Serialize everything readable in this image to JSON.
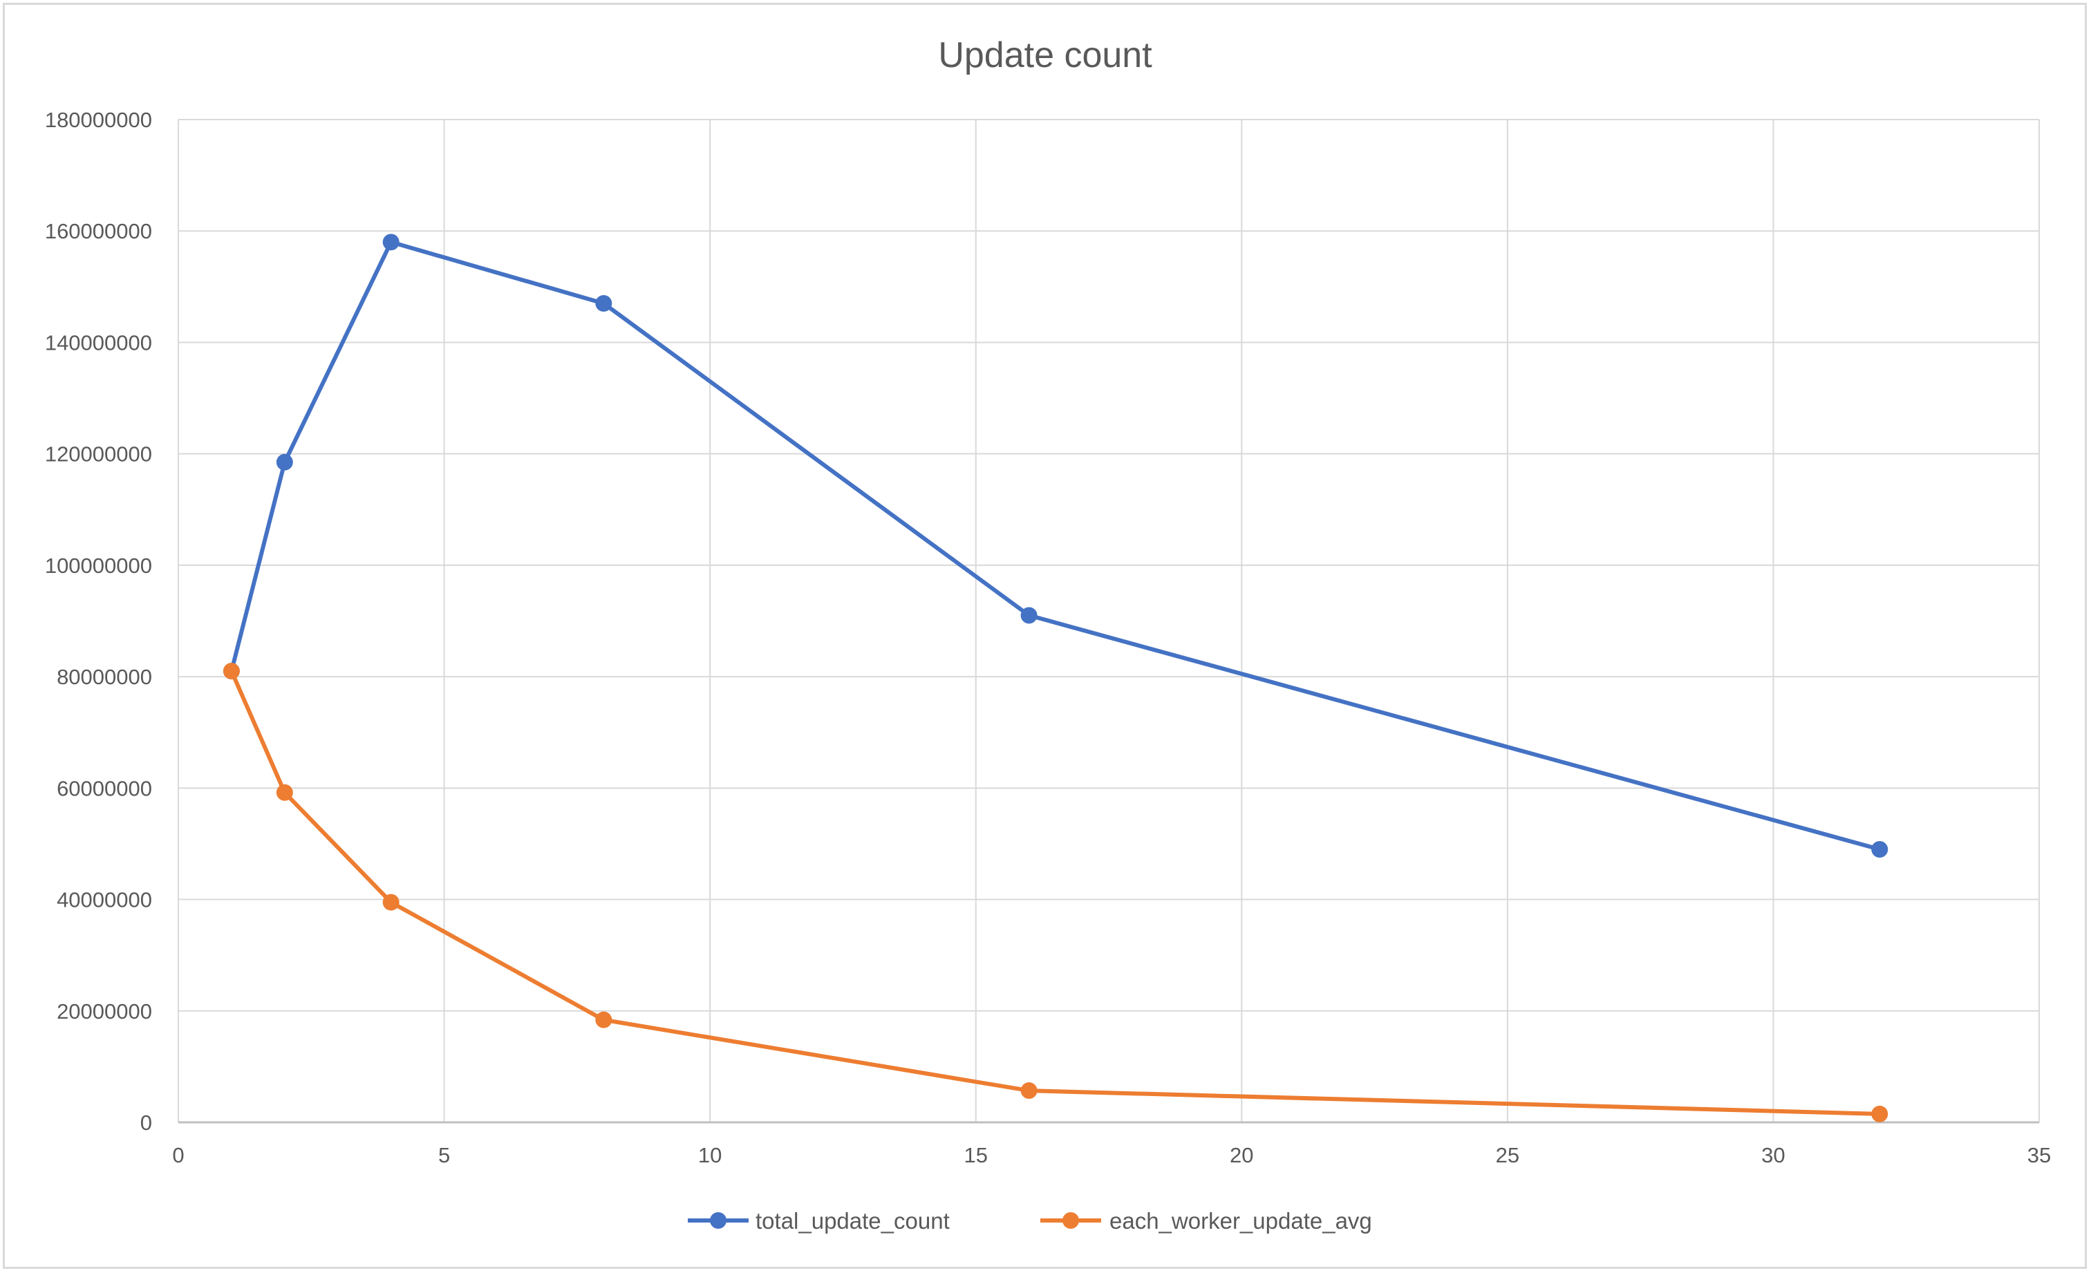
{
  "chart_data": {
    "type": "line",
    "title": "Update count",
    "xlabel": "",
    "ylabel": "",
    "xlim": [
      0,
      35
    ],
    "ylim": [
      0,
      180000000
    ],
    "x_ticks": [
      "0",
      "5",
      "10",
      "15",
      "20",
      "25",
      "30",
      "35"
    ],
    "y_ticks": [
      "0",
      "20000000",
      "40000000",
      "60000000",
      "80000000",
      "100000000",
      "120000000",
      "140000000",
      "160000000",
      "180000000"
    ],
    "x": [
      1,
      2,
      4,
      8,
      16,
      32
    ],
    "series": [
      {
        "name": "total_update_count",
        "color": "#4472c4",
        "values": [
          81000000,
          118500000,
          158000000,
          147000000,
          91000000,
          49000000
        ]
      },
      {
        "name": "each_worker_update_avg",
        "color": "#ed7d31",
        "values": [
          81000000,
          59200000,
          39500000,
          18400000,
          5700000,
          1500000
        ]
      }
    ],
    "grid": true,
    "legend_position": "bottom"
  }
}
